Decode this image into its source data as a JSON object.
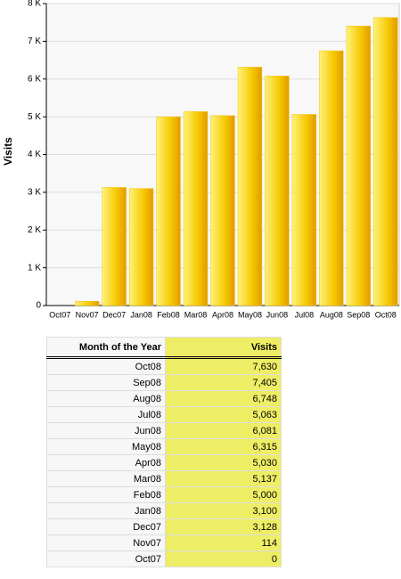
{
  "chart_data": {
    "type": "bar",
    "y_label": "Visits",
    "categories": [
      "Oct07",
      "Nov07",
      "Dec07",
      "Jan08",
      "Feb08",
      "Mar08",
      "Apr08",
      "May08",
      "Jun08",
      "Jul08",
      "Aug08",
      "Sep08",
      "Oct08"
    ],
    "values": [
      0,
      114,
      3128,
      3100,
      5000,
      5137,
      5030,
      6315,
      6081,
      5063,
      6748,
      7405,
      7630
    ],
    "color": "#f2c200",
    "ylim": [
      0,
      8000
    ],
    "yticks": [
      0,
      {
        "value": 1000,
        "label": "1 K"
      },
      {
        "value": 2000,
        "label": "2 K"
      },
      {
        "value": 3000,
        "label": "3 K"
      },
      {
        "value": 4000,
        "label": "4 K"
      },
      {
        "value": 5000,
        "label": "5 K"
      },
      {
        "value": 6000,
        "label": "6 K"
      },
      {
        "value": 7000,
        "label": "7 K"
      },
      {
        "value": 8000,
        "label": "8 K"
      }
    ],
    "grid": true
  },
  "table": {
    "header": [
      "Month of the Year",
      "Visits"
    ],
    "rows": [
      [
        "Oct08",
        "7,630"
      ],
      [
        "Sep08",
        "7,405"
      ],
      [
        "Aug08",
        "6,748"
      ],
      [
        "Jul08",
        "5,063"
      ],
      [
        "Jun08",
        "6,081"
      ],
      [
        "May08",
        "6,315"
      ],
      [
        "Apr08",
        "5,030"
      ],
      [
        "Mar08",
        "5,137"
      ],
      [
        "Feb08",
        "5,000"
      ],
      [
        "Jan08",
        "3,100"
      ],
      [
        "Dec07",
        "3,128"
      ],
      [
        "Nov07",
        "114"
      ],
      [
        "Oct07",
        "0"
      ]
    ]
  }
}
